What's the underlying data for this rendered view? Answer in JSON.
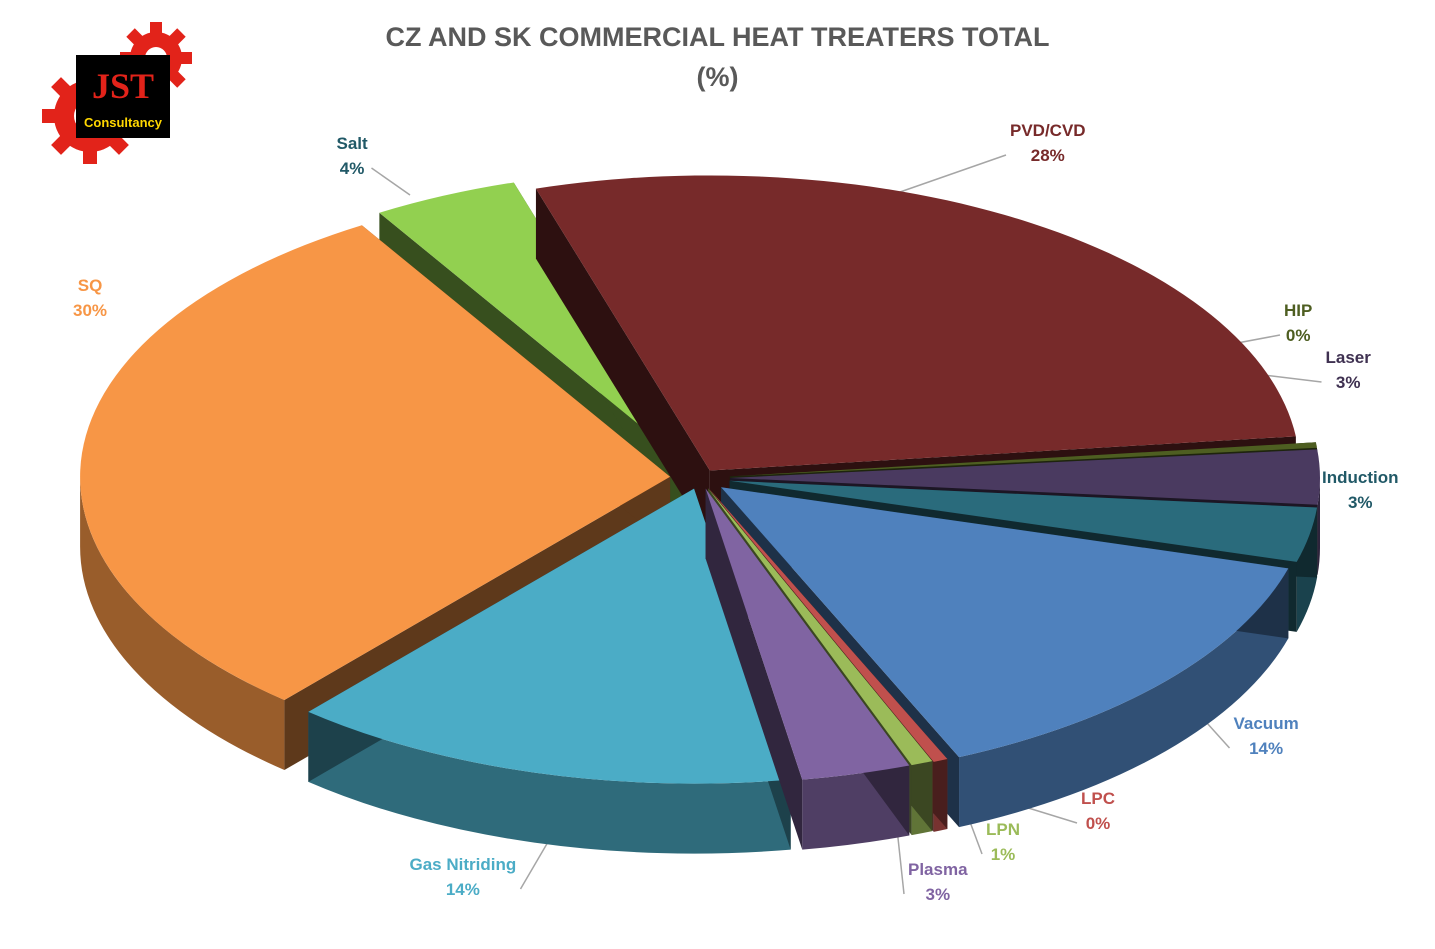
{
  "chart_data": {
    "type": "pie",
    "title": "CZ AND SK COMMERCIAL HEAT TREATERS TOTAL",
    "subtitle": "(%)",
    "slices": [
      {
        "label": "PVD/CVD",
        "value_label": "28%",
        "value": 28,
        "color": "#772A2A"
      },
      {
        "label": "HIP",
        "value_label": "0%",
        "value": 0.3,
        "color": "#4E5E21"
      },
      {
        "label": "Laser",
        "value_label": "3%",
        "value": 3,
        "color": "#4A3A60"
      },
      {
        "label": "Induction",
        "value_label": "3%",
        "value": 3,
        "color": "#2A6B7C"
      },
      {
        "label": "Vacuum",
        "value_label": "14%",
        "value": 14,
        "color": "#4F81BD"
      },
      {
        "label": "LPC",
        "value_label": "0%",
        "value": 0.4,
        "color": "#C0504D"
      },
      {
        "label": "LPN",
        "value_label": "1%",
        "value": 0.6,
        "color": "#9BBB59"
      },
      {
        "label": "Plasma",
        "value_label": "3%",
        "value": 3,
        "color": "#8064A2"
      },
      {
        "label": "Gas Nitriding",
        "value_label": "14%",
        "value": 14,
        "color": "#4BACC6"
      },
      {
        "label": "SQ",
        "value_label": "30%",
        "value": 30,
        "color": "#F79646"
      },
      {
        "label": "Salt",
        "value_label": "4%",
        "value": 4,
        "color": "#92D050"
      }
    ],
    "label_colors": {
      "PVD/CVD": "#772A2A",
      "HIP": "#4E5E21",
      "Laser": "#3F3151",
      "Induction": "#215967",
      "Vacuum": "#4F81BD",
      "LPC": "#C0504D",
      "LPN": "#9BBB59",
      "Plasma": "#8064A2",
      "Gas Nitriding": "#4BACC6",
      "SQ": "#F79646",
      "Salt": "#215967"
    }
  },
  "logo": {
    "text_top": "JST",
    "text_bottom": "Consultancy",
    "gear_color": "#E2231A"
  }
}
